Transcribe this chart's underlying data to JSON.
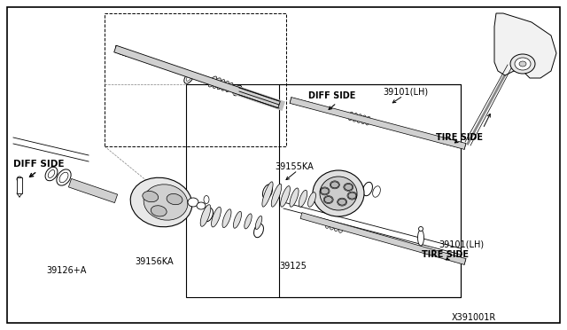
{
  "bg_color": "#ffffff",
  "line_color": "#000000",
  "labels": {
    "diff_side_left": "DIFF SIDE",
    "diff_side_right": "DIFF SIDE",
    "tire_side_right_top": "TIRE SIDE",
    "tire_side_right_bottom": "TIRE SIDE",
    "part_39101_lh_top": "39101(LH)",
    "part_39101_lh_bottom": "39101(LH)",
    "part_39155ka": "39155KA",
    "part_39156ka": "39156KA",
    "part_39126a": "39126+A",
    "part_39125": "39125",
    "part_x391001r": "X391001R"
  }
}
